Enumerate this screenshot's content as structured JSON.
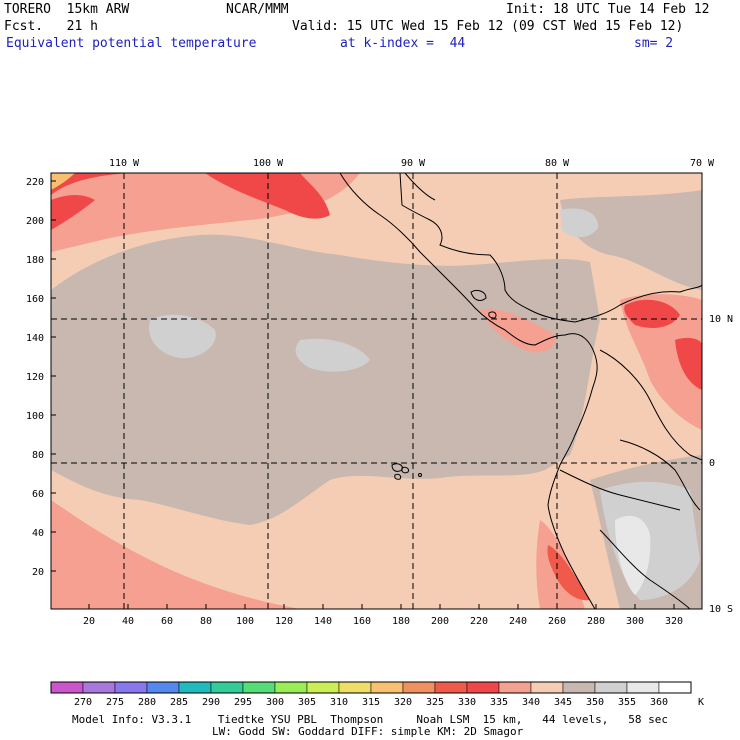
{
  "header": {
    "model": "TORERO  15km ARW",
    "org": "NCAR/MMM",
    "init": "Init: 18 UTC Tue 14 Feb 12",
    "fcst": "Fcst.   21 h",
    "valid": "Valid: 15 UTC Wed 15 Feb 12 (09 CST Wed 15 Feb 12)",
    "field": "Equivalent potential temperature",
    "level": "at k-index =  44",
    "smooth": "sm= 2"
  },
  "map": {
    "lon_labels": [
      "110 W",
      "100 W",
      "90 W",
      "80 W",
      "70 W"
    ],
    "lat_labels": [
      "10 N",
      "0",
      "10 S"
    ],
    "x_ticks": [
      "20",
      "40",
      "60",
      "80",
      "100",
      "120",
      "140",
      "160",
      "180",
      "200",
      "220",
      "240",
      "260",
      "280",
      "300",
      "320"
    ],
    "y_ticks": [
      "20",
      "40",
      "60",
      "80",
      "100",
      "120",
      "140",
      "160",
      "180",
      "200",
      "220"
    ],
    "grid_x_range": [
      1,
      332
    ],
    "grid_y_range": [
      1,
      224
    ]
  },
  "colorbar": {
    "labels": [
      "270",
      "275",
      "280",
      "285",
      "290",
      "295",
      "300",
      "305",
      "310",
      "315",
      "320",
      "325",
      "330",
      "335",
      "340",
      "345",
      "350",
      "355",
      "360"
    ],
    "unit": "K",
    "colors": [
      "#cc55cc",
      "#aa77dd",
      "#8877ee",
      "#5588ee",
      "#22bbbb",
      "#33cc99",
      "#55dd77",
      "#99ee55",
      "#ccee55",
      "#eedd66",
      "#f8c070",
      "#f09060",
      "#f05a4a",
      "#f04848",
      "#f5a090",
      "#f5cdb5",
      "#c8b8b0",
      "#d0d0d0",
      "#e8e8e8",
      "#ffffff"
    ]
  },
  "footer": {
    "line1": "Model Info: V3.3.1    Tiedtke YSU PBL  Thompson     Noah LSM  15 km,   44 levels,   58 sec",
    "line2": "LW: Godd SW: Goddard DIFF: simple KM: 2D Smagor"
  }
}
